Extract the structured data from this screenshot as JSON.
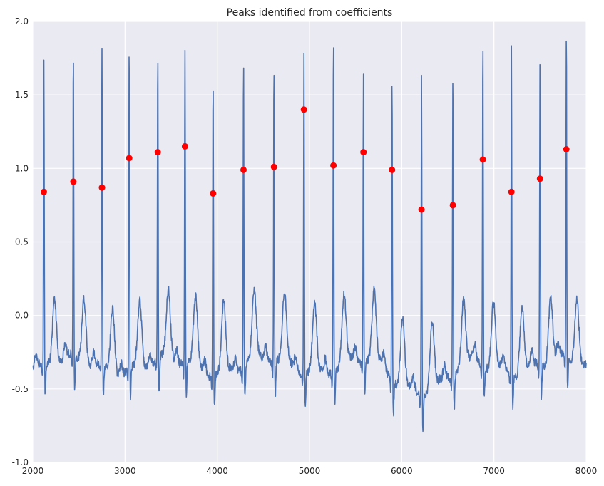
{
  "chart_data": {
    "type": "line",
    "title": "Peaks identified from coefficients",
    "xlabel": "",
    "ylabel": "",
    "xlim": [
      2000,
      8000
    ],
    "ylim": [
      -1.0,
      2.0
    ],
    "grid": true,
    "legend": "none",
    "x_ticks": [
      "2000",
      "3000",
      "4000",
      "5000",
      "6000",
      "7000",
      "8000"
    ],
    "y_ticks": [
      "-1.0",
      "-0.5",
      "0.0",
      "0.5",
      "1.0",
      "1.5",
      "2.0"
    ],
    "colors": {
      "line": "#4c72b0",
      "peaks": "#ff0000",
      "background": "#eaeaf2",
      "grid": "#ffffff"
    },
    "signal_peaks": [
      {
        "x": 2120,
        "y": 1.77
      },
      {
        "x": 2440,
        "y": 1.82
      },
      {
        "x": 2750,
        "y": 1.85
      },
      {
        "x": 3045,
        "y": 1.84
      },
      {
        "x": 3355,
        "y": 1.79
      },
      {
        "x": 3650,
        "y": 1.81
      },
      {
        "x": 3955,
        "y": 1.62
      },
      {
        "x": 4285,
        "y": 1.77
      },
      {
        "x": 4615,
        "y": 1.75
      },
      {
        "x": 4940,
        "y": 1.83
      },
      {
        "x": 5260,
        "y": 1.89
      },
      {
        "x": 5585,
        "y": 1.65
      },
      {
        "x": 5895,
        "y": 1.62
      },
      {
        "x": 6215,
        "y": 1.68
      },
      {
        "x": 6555,
        "y": 1.66
      },
      {
        "x": 6880,
        "y": 1.86
      },
      {
        "x": 7190,
        "y": 1.86
      },
      {
        "x": 7500,
        "y": 1.79
      },
      {
        "x": 7785,
        "y": 1.96
      }
    ],
    "series": [
      {
        "type": "scatter",
        "points": [
          {
            "x": 2120,
            "y": 0.84
          },
          {
            "x": 2440,
            "y": 0.91
          },
          {
            "x": 2750,
            "y": 0.87
          },
          {
            "x": 3045,
            "y": 1.07
          },
          {
            "x": 3355,
            "y": 1.11
          },
          {
            "x": 3650,
            "y": 1.15
          },
          {
            "x": 3955,
            "y": 0.83
          },
          {
            "x": 4285,
            "y": 0.99
          },
          {
            "x": 4615,
            "y": 1.01
          },
          {
            "x": 4940,
            "y": 1.4
          },
          {
            "x": 5260,
            "y": 1.02
          },
          {
            "x": 5585,
            "y": 1.11
          },
          {
            "x": 5895,
            "y": 0.99
          },
          {
            "x": 6215,
            "y": 0.72
          },
          {
            "x": 6555,
            "y": 0.75
          },
          {
            "x": 6880,
            "y": 1.06
          },
          {
            "x": 7190,
            "y": 0.84
          },
          {
            "x": 7500,
            "y": 0.93
          },
          {
            "x": 7785,
            "y": 1.13
          }
        ]
      }
    ]
  }
}
